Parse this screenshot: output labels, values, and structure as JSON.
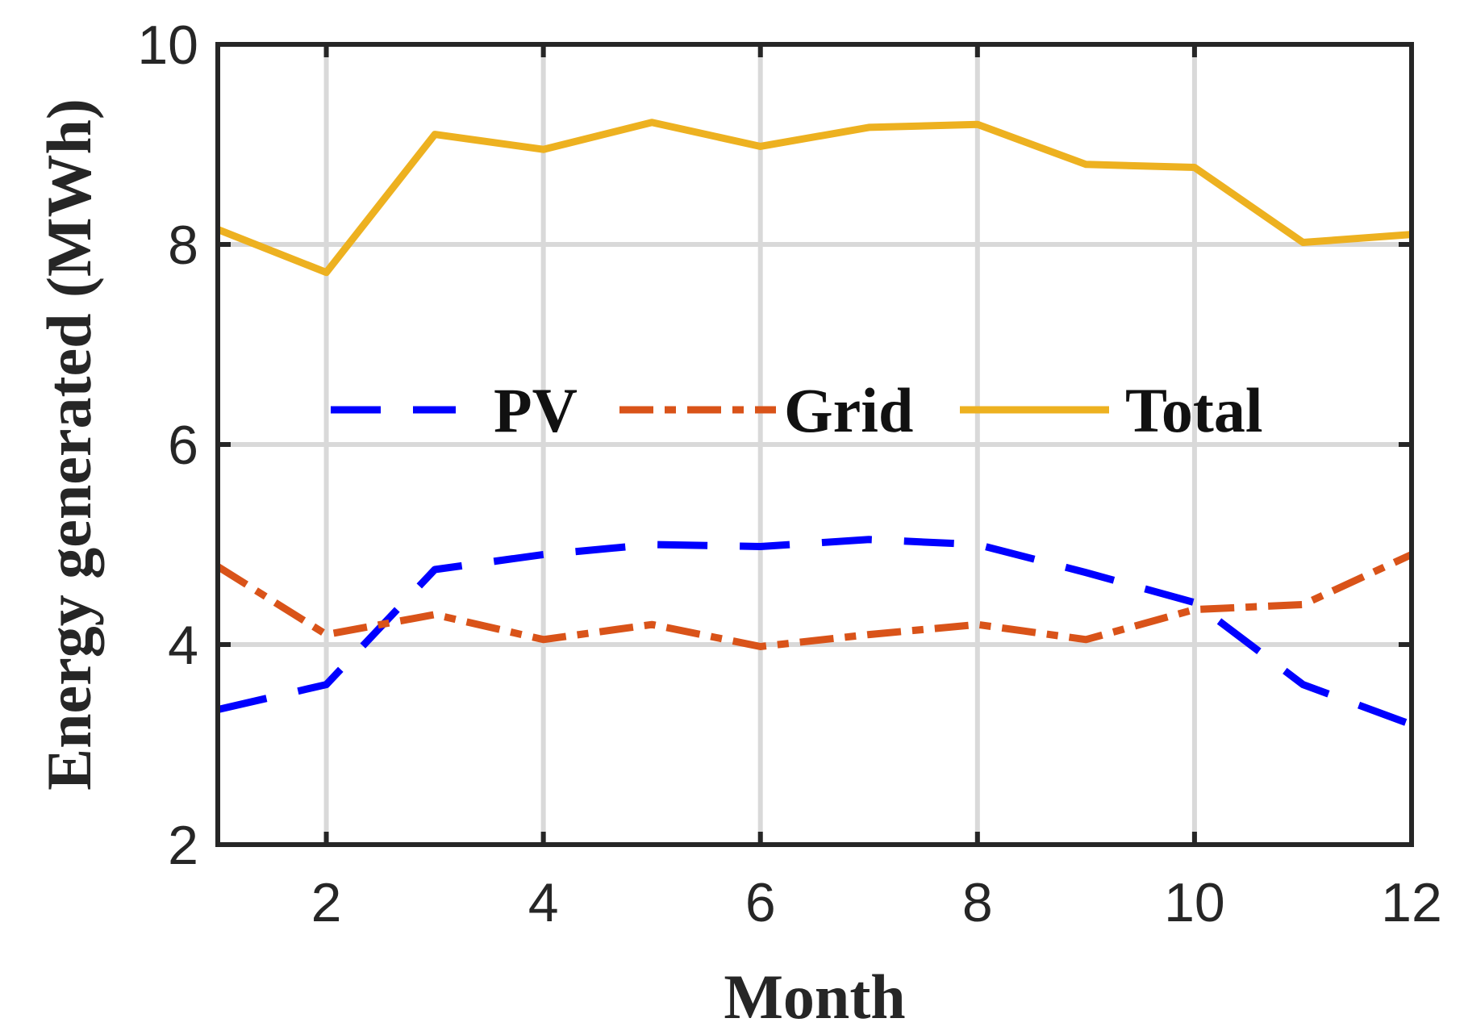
{
  "chart_data": {
    "type": "line",
    "title": "",
    "xlabel": "Month",
    "ylabel": "Energy generated (MWh)",
    "xlim": [
      1,
      12
    ],
    "ylim": [
      2,
      10
    ],
    "xticks": [
      2,
      4,
      6,
      8,
      10,
      12
    ],
    "yticks": [
      2,
      4,
      6,
      8,
      10
    ],
    "grid": true,
    "legend_position": "center",
    "x": [
      1,
      2,
      3,
      4,
      5,
      6,
      7,
      8,
      9,
      10,
      11,
      12
    ],
    "series": [
      {
        "name": "PV",
        "style": "dashed",
        "color": "#0000FF",
        "values": [
          3.35,
          3.6,
          4.75,
          4.9,
          5.0,
          4.98,
          5.05,
          5.0,
          4.72,
          4.42,
          3.6,
          3.2
        ]
      },
      {
        "name": "Grid",
        "style": "dash-dot",
        "color": "#D95319",
        "values": [
          4.78,
          4.1,
          4.3,
          4.05,
          4.2,
          3.98,
          4.1,
          4.2,
          4.05,
          4.35,
          4.4,
          4.9
        ]
      },
      {
        "name": "Total",
        "style": "solid",
        "color": "#EDB120",
        "values": [
          8.15,
          7.72,
          9.1,
          8.95,
          9.22,
          8.98,
          9.17,
          9.2,
          8.8,
          8.77,
          8.02,
          8.1
        ]
      }
    ]
  }
}
